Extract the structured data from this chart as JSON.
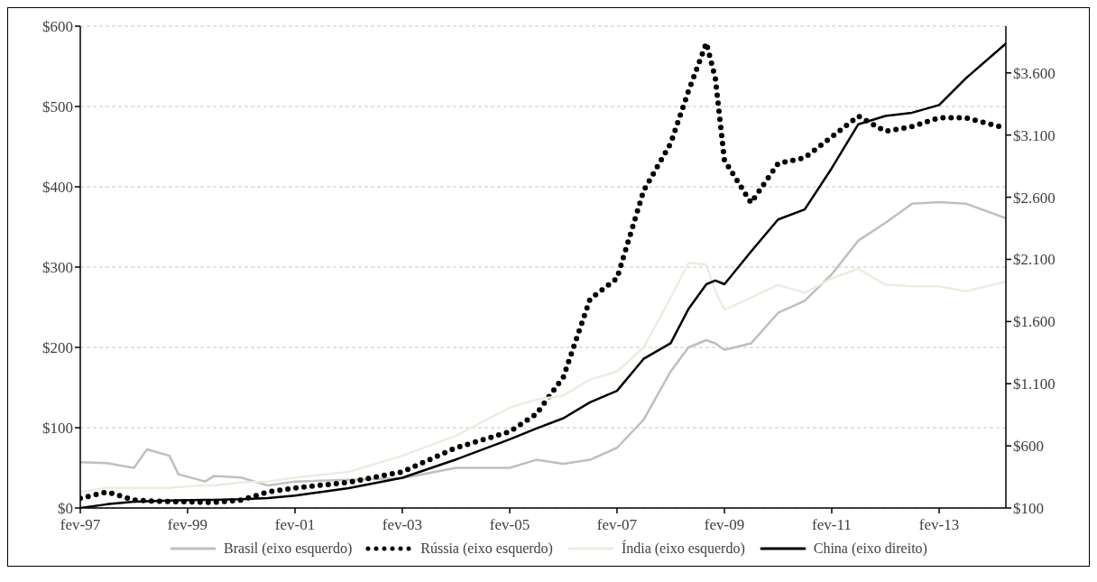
{
  "chart_data": {
    "type": "line",
    "x": [
      "1997-02",
      "1997-08",
      "1998-02",
      "1998-05",
      "1998-10",
      "1998-12",
      "1999-06",
      "1999-08",
      "2000-02",
      "2000-08",
      "2001-02",
      "2002-02",
      "2003-02",
      "2004-02",
      "2005-02",
      "2005-08",
      "2006-02",
      "2006-08",
      "2007-02",
      "2007-08",
      "2008-02",
      "2008-06",
      "2008-10",
      "2008-12",
      "2009-02",
      "2009-08",
      "2010-02",
      "2010-08",
      "2011-02",
      "2011-08",
      "2012-02",
      "2012-08",
      "2013-02",
      "2013-08",
      "2014-05"
    ],
    "series": [
      {
        "name": "Brasil (eixo esquerdo)",
        "color": "#bfbfbf",
        "line_style": "solid",
        "values": [
          57,
          56,
          50,
          73,
          65,
          42,
          33,
          40,
          38,
          28,
          33,
          35,
          37,
          50,
          50,
          60,
          55,
          60,
          75,
          110,
          170,
          200,
          209,
          205,
          197,
          205,
          243,
          258,
          291,
          333,
          355,
          379,
          381,
          379,
          361
        ]
      },
      {
        "name": "Rússia (eixo esquerdo)",
        "color": "#000000",
        "line_style": "dotted",
        "values": [
          12,
          20,
          10,
          9,
          8,
          8,
          7,
          7,
          10,
          20,
          25,
          32,
          45,
          75,
          95,
          117,
          163,
          260,
          286,
          395,
          454,
          519,
          579,
          535,
          433,
          380,
          429,
          436,
          462,
          488,
          469,
          475,
          486,
          486,
          473
        ]
      },
      {
        "name": "Índia (eixo esquerdo)",
        "color": "#eeece1",
        "line_style": "solid",
        "values": [
          20,
          25,
          25,
          25,
          25,
          26,
          28,
          28,
          32,
          33,
          38,
          45,
          65,
          90,
          125,
          135,
          140,
          160,
          170,
          200,
          262,
          305,
          303,
          270,
          247,
          262,
          278,
          268,
          286,
          298,
          278,
          276,
          276,
          270,
          282
        ]
      },
      {
        "name": "China (eixo direito)",
        "color": "#000000",
        "line_style": "solid",
        "axis": "y2",
        "values": [
          100,
          130,
          150,
          155,
          160,
          162,
          165,
          166,
          170,
          180,
          200,
          260,
          343,
          490,
          653,
          740,
          822,
          950,
          1043,
          1300,
          1426,
          1700,
          1900,
          1930,
          1900,
          2163,
          2421,
          2502,
          2833,
          3187,
          3254,
          3280,
          3342,
          3556,
          3836
        ]
      }
    ],
    "xlim": [
      "1997-02",
      "2014-05"
    ],
    "xticks": [
      {
        "value": "1997-02",
        "label": "fev-97"
      },
      {
        "value": "1999-02",
        "label": "fev-99"
      },
      {
        "value": "2001-02",
        "label": "fev-01"
      },
      {
        "value": "2003-02",
        "label": "fev-03"
      },
      {
        "value": "2005-02",
        "label": "fev-05"
      },
      {
        "value": "2007-02",
        "label": "fev-07"
      },
      {
        "value": "2009-02",
        "label": "fev-09"
      },
      {
        "value": "2011-02",
        "label": "fev-11"
      },
      {
        "value": "2013-02",
        "label": "fev-13"
      }
    ],
    "ylim": [
      0,
      600
    ],
    "yticks": [
      {
        "value": 0,
        "label": "$0"
      },
      {
        "value": 100,
        "label": "$100"
      },
      {
        "value": 200,
        "label": "$200"
      },
      {
        "value": 300,
        "label": "$300"
      },
      {
        "value": 400,
        "label": "$400"
      },
      {
        "value": 500,
        "label": "$500"
      },
      {
        "value": 600,
        "label": "$600"
      }
    ],
    "y2lim": [
      100,
      3976
    ],
    "y2ticks": [
      {
        "value": 100,
        "label": "$100"
      },
      {
        "value": 600,
        "label": "$600"
      },
      {
        "value": 1100,
        "label": "$1.100"
      },
      {
        "value": 1600,
        "label": "$1.600"
      },
      {
        "value": 2100,
        "label": "$2.100"
      },
      {
        "value": 2600,
        "label": "$2.600"
      },
      {
        "value": 3100,
        "label": "$3.100"
      },
      {
        "value": 3600,
        "label": "$3.600"
      }
    ],
    "grid": "y",
    "legend": "bottom",
    "marker": "none"
  }
}
